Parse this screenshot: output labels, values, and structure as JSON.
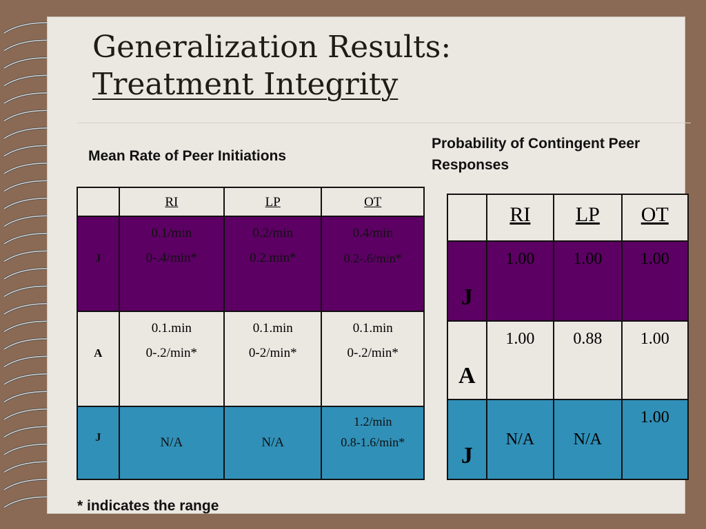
{
  "title": {
    "line1": "Generalization Results:",
    "line2": "Treatment Integrity"
  },
  "left_caption": "Mean Rate of Peer Initiations",
  "right_caption": "Probability of Contingent Peer Responses",
  "footnote": "* indicates the range",
  "left_table": {
    "headers": [
      "",
      "RI",
      "LP",
      "OT"
    ],
    "rows": [
      {
        "label": "J",
        "cells": [
          {
            "value": "0.1/min",
            "range": "0-.4/min*"
          },
          {
            "value": "0.2/min",
            "range": "0.2.min*"
          },
          {
            "value": "0.4/min",
            "range": "0.2-.6/min*"
          }
        ]
      },
      {
        "label": "A",
        "cells": [
          {
            "value": "0.1.min",
            "range": "0-.2/min*"
          },
          {
            "value": "0.1.min",
            "range": "0-2/min*"
          },
          {
            "value": "0.1.min",
            "range": "0-.2/min*"
          }
        ]
      },
      {
        "label": "J",
        "cells": [
          {
            "value": "N/A"
          },
          {
            "value": "N/A"
          },
          {
            "value": "1.2/min",
            "range": "0.8-1.6/min*"
          }
        ]
      }
    ]
  },
  "right_table": {
    "headers": [
      "",
      "RI",
      "LP",
      "OT"
    ],
    "rows": [
      {
        "label": "J",
        "cells": [
          "1.00",
          "1.00",
          "1.00"
        ]
      },
      {
        "label": "A",
        "cells": [
          "1.00",
          "0.88",
          "1.00"
        ]
      },
      {
        "label": "J",
        "cells": [
          "N/A",
          "N/A",
          "1.00"
        ]
      }
    ]
  },
  "colors": {
    "purple_row": "#5c0063",
    "blue_row": "#3090b8",
    "background": "#8a6a55",
    "paper": "#ebe7e1"
  }
}
